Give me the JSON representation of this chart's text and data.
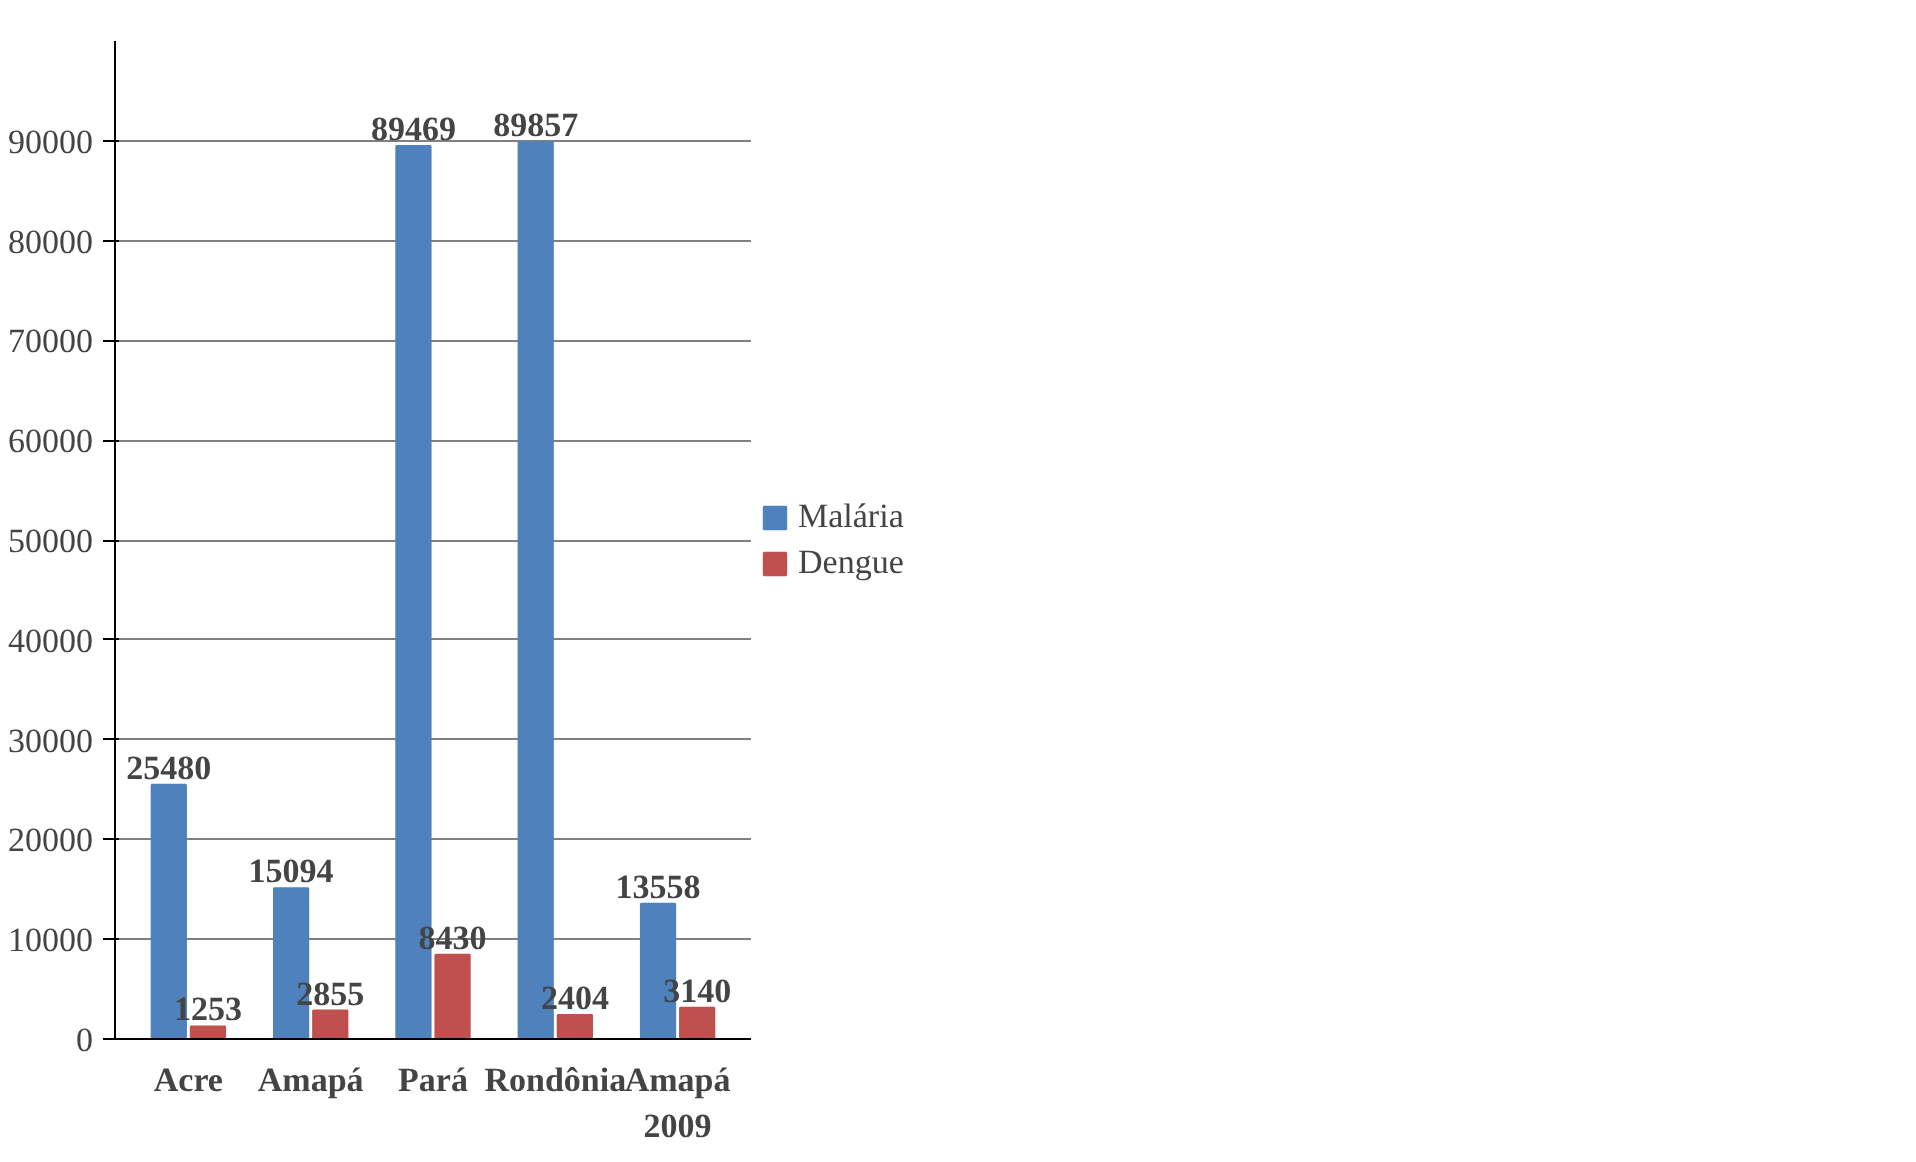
{
  "chart_data": {
    "type": "bar",
    "categories": [
      "Acre",
      "Amapá",
      "Pará",
      "Rondônia",
      "Amapá 2009"
    ],
    "series": [
      {
        "name": "Malária",
        "color": "#4f81bd",
        "values": [
          25480,
          15094,
          89469,
          89857,
          13558
        ]
      },
      {
        "name": "Dengue",
        "color": "#c0504d",
        "values": [
          1253,
          2855,
          8430,
          2404,
          3140
        ]
      }
    ],
    "ylim": [
      0,
      100000
    ],
    "yticks": [
      0,
      10000,
      20000,
      30000,
      40000,
      50000,
      60000,
      70000,
      80000,
      90000
    ],
    "grid": "y",
    "legend": "right",
    "data_labels": true
  }
}
